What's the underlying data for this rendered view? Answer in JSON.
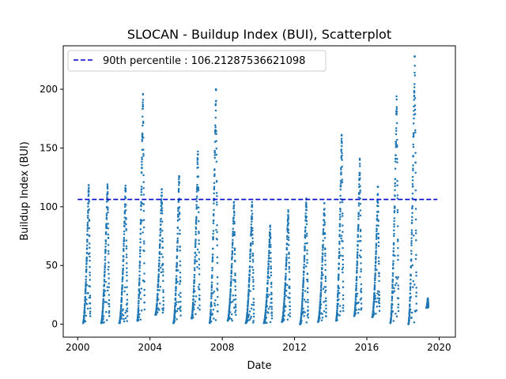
{
  "chart_data": {
    "type": "scatter",
    "title": "SLOCAN - Buildup Index (BUI), Scatterplot",
    "xlabel": "Date",
    "ylabel": "Buildup Index (BUI)",
    "xlim": [
      1999.2,
      2020.9
    ],
    "ylim": [
      -11,
      237
    ],
    "x_ticks": [
      2000,
      2004,
      2008,
      2012,
      2016,
      2020
    ],
    "y_ticks": [
      0,
      50,
      100,
      150,
      200
    ],
    "grid": false,
    "legend_position": "top-left",
    "reference_line": {
      "label": "90th percentile : 106.21287536621098",
      "value": 106.21287536621098,
      "x_range": [
        2000.0,
        2019.9
      ],
      "color": "#0000cc",
      "style": "dashed"
    },
    "series": [
      {
        "color": "#1f77b4",
        "marker": "dot",
        "seasons": [
          {
            "start": 2000.3,
            "end": 2000.7,
            "low": 1,
            "peak": 120
          },
          {
            "start": 2001.3,
            "end": 2001.75,
            "low": 1,
            "peak": 120
          },
          {
            "start": 2002.3,
            "end": 2002.75,
            "low": 1,
            "peak": 118
          },
          {
            "start": 2003.3,
            "end": 2003.7,
            "low": 3,
            "peak": 196
          },
          {
            "start": 2004.3,
            "end": 2004.75,
            "low": 8,
            "peak": 116
          },
          {
            "start": 2005.3,
            "end": 2005.7,
            "low": 1,
            "peak": 126
          },
          {
            "start": 2006.3,
            "end": 2006.75,
            "low": 5,
            "peak": 147
          },
          {
            "start": 2007.3,
            "end": 2007.75,
            "low": 1,
            "peak": 200
          },
          {
            "start": 2008.3,
            "end": 2008.75,
            "low": 3,
            "peak": 104
          },
          {
            "start": 2009.3,
            "end": 2009.75,
            "low": 1,
            "peak": 104
          },
          {
            "start": 2010.3,
            "end": 2010.75,
            "low": 1,
            "peak": 84
          },
          {
            "start": 2011.3,
            "end": 2011.75,
            "low": 2,
            "peak": 97
          },
          {
            "start": 2012.3,
            "end": 2012.75,
            "low": 0,
            "peak": 107
          },
          {
            "start": 2013.3,
            "end": 2013.75,
            "low": 2,
            "peak": 103
          },
          {
            "start": 2014.3,
            "end": 2014.7,
            "low": 3,
            "peak": 163
          },
          {
            "start": 2015.3,
            "end": 2015.7,
            "low": 7,
            "peak": 141
          },
          {
            "start": 2016.3,
            "end": 2016.7,
            "low": 6,
            "peak": 117
          },
          {
            "start": 2017.3,
            "end": 2017.75,
            "low": 1,
            "peak": 194
          },
          {
            "start": 2018.3,
            "end": 2018.75,
            "low": 0,
            "peak": 228
          },
          {
            "start": 2019.3,
            "end": 2019.4,
            "low": 14,
            "peak": 22
          }
        ]
      }
    ]
  }
}
